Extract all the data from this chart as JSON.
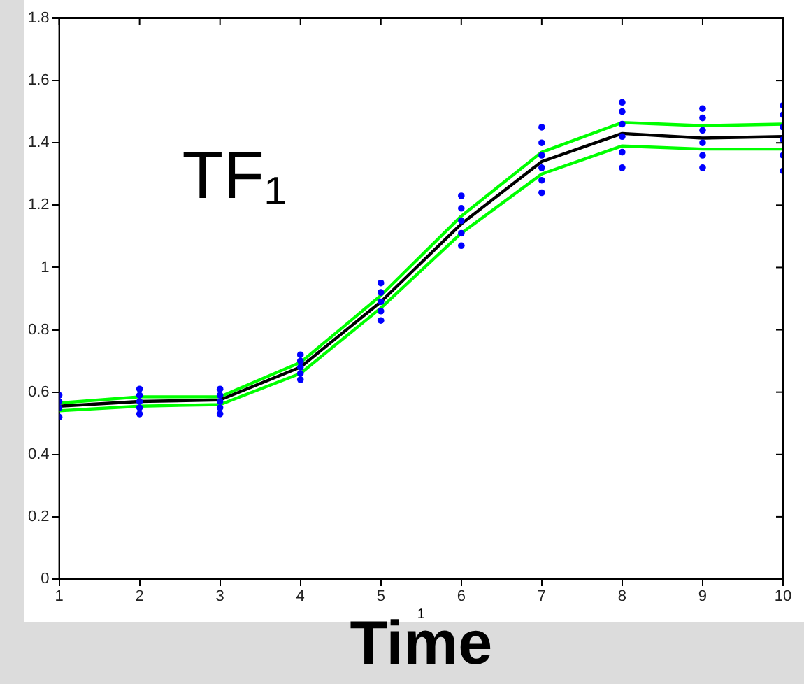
{
  "chart_data": {
    "type": "line",
    "xlabel": "Time",
    "annotations": [
      "TF₁",
      "1"
    ],
    "x": [
      1,
      2,
      3,
      4,
      5,
      6,
      7,
      8,
      9,
      10
    ],
    "xlim": [
      1,
      10
    ],
    "xticks": [
      1,
      2,
      3,
      4,
      5,
      6,
      7,
      8,
      9,
      10
    ],
    "ylim": [
      0,
      1.8
    ],
    "yticks": [
      0,
      0.2,
      0.4,
      0.6,
      0.8,
      1,
      1.2,
      1.4,
      1.6,
      1.8
    ],
    "grid": false,
    "legend": false,
    "marker": "none",
    "line_style": "solid",
    "series": [
      {
        "type": "scatter",
        "color": "#0000ff",
        "marker": "circle",
        "x": [
          1,
          1,
          1,
          1,
          2,
          2,
          2,
          2,
          2,
          3,
          3,
          3,
          3,
          3,
          4,
          4,
          4,
          4,
          4,
          5,
          5,
          5,
          5,
          5,
          6,
          6,
          6,
          6,
          6,
          7,
          7,
          7,
          7,
          7,
          7,
          8,
          8,
          8,
          8,
          8,
          8,
          9,
          9,
          9,
          9,
          9,
          9,
          10,
          10,
          10,
          10,
          10,
          10
        ],
        "values": [
          0.52,
          0.55,
          0.57,
          0.59,
          0.53,
          0.55,
          0.57,
          0.59,
          0.61,
          0.53,
          0.55,
          0.57,
          0.59,
          0.61,
          0.64,
          0.66,
          0.68,
          0.7,
          0.72,
          0.83,
          0.86,
          0.89,
          0.92,
          0.95,
          1.07,
          1.11,
          1.15,
          1.19,
          1.23,
          1.24,
          1.28,
          1.32,
          1.36,
          1.4,
          1.45,
          1.32,
          1.37,
          1.42,
          1.46,
          1.5,
          1.53,
          1.32,
          1.36,
          1.4,
          1.44,
          1.48,
          1.51,
          1.31,
          1.36,
          1.41,
          1.45,
          1.49,
          1.52
        ]
      },
      {
        "color": "#00ff00",
        "values": [
          0.565,
          0.585,
          0.585,
          0.695,
          0.91,
          1.165,
          1.37,
          1.465,
          1.455,
          1.46
        ]
      },
      {
        "color": "#00ff00",
        "values": [
          0.54,
          0.555,
          0.56,
          0.66,
          0.87,
          1.11,
          1.3,
          1.39,
          1.38,
          1.38
        ]
      },
      {
        "color": "#000000",
        "values": [
          0.555,
          0.57,
          0.575,
          0.68,
          0.89,
          1.14,
          1.34,
          1.43,
          1.415,
          1.42
        ]
      }
    ]
  }
}
